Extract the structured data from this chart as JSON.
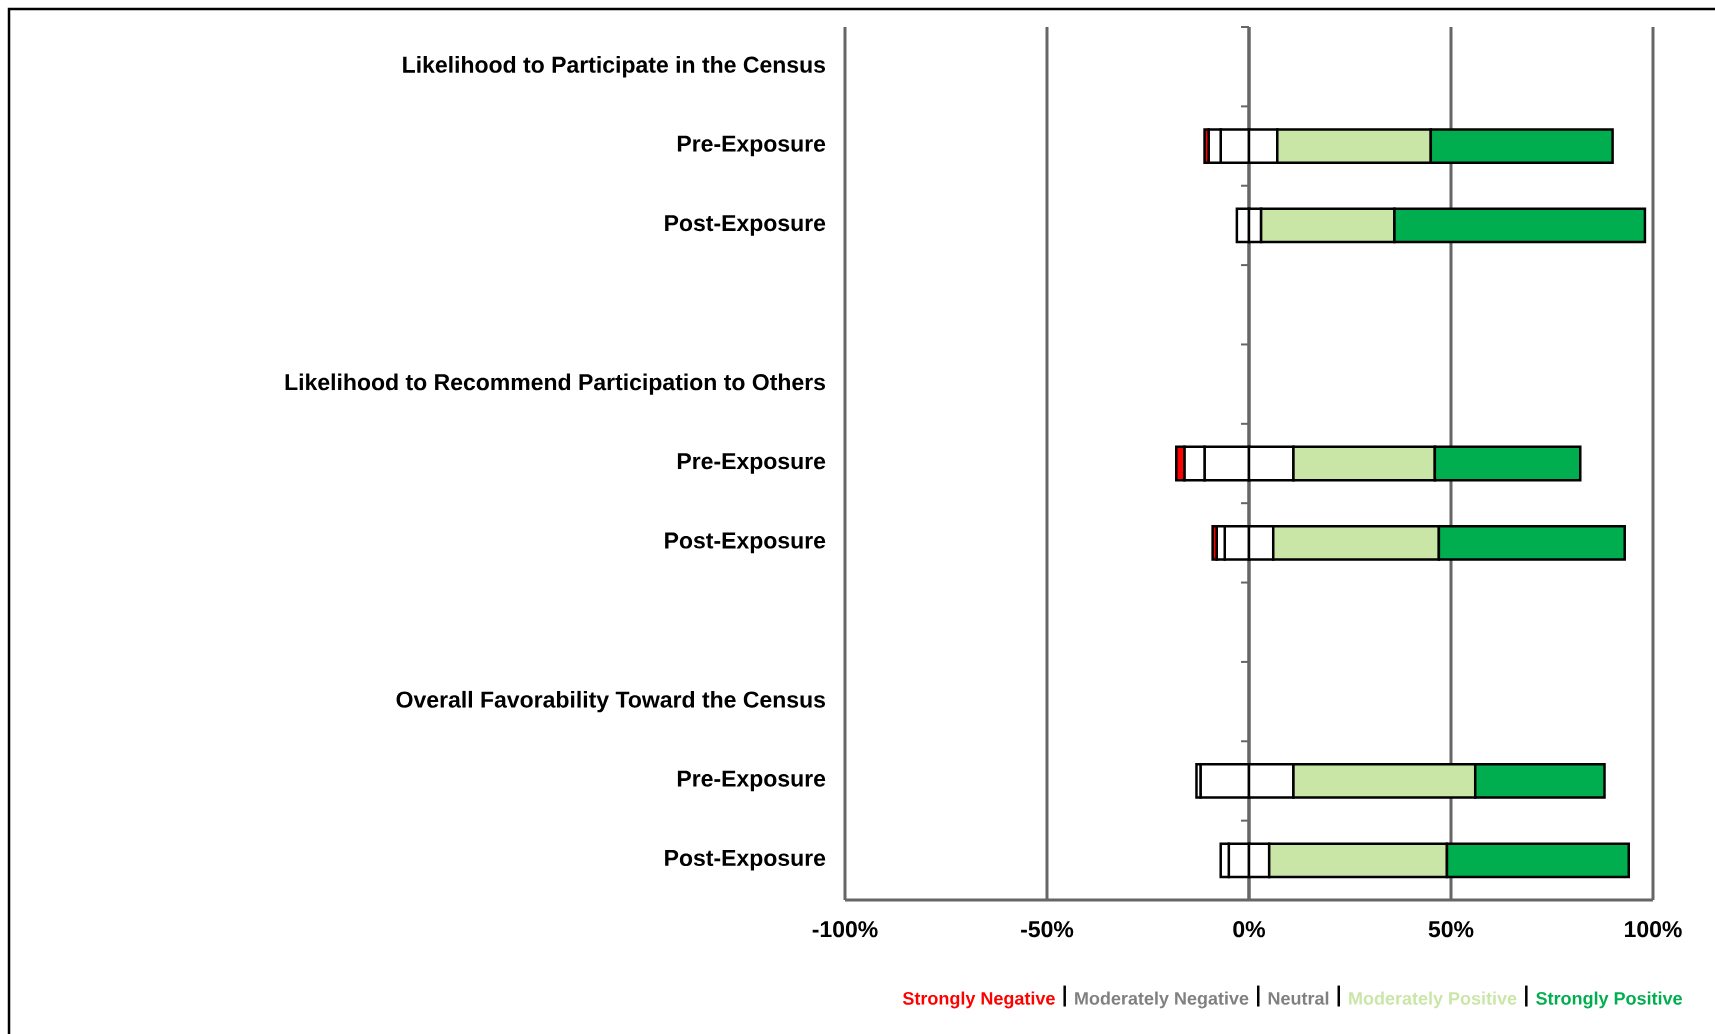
{
  "chart_data": {
    "type": "bar",
    "orientation": "horizontal",
    "stacked": true,
    "categories": [
      "Likelihood to Participate in the Census",
      "Pre-Exposure",
      "Post-Exposure",
      null,
      "Likelihood to Recommend Participation to Others",
      "Pre-Exposure",
      "Post-Exposure",
      null,
      "Overall Favorability Toward the Census",
      "Pre-Exposure",
      "Post-Exposure"
    ],
    "series": [
      {
        "name": "Neutral",
        "color": "#ffffff",
        "values": [
          null,
          -7,
          -3,
          null,
          null,
          -11,
          -6,
          null,
          null,
          -12,
          -5
        ]
      },
      {
        "color": "#ffffff",
        "values": [
          null,
          7,
          3,
          null,
          null,
          11,
          6,
          null,
          null,
          11,
          5
        ]
      },
      {
        "name": "Moderately Negative",
        "color": "#ffffff",
        "values": [
          null,
          -3,
          0,
          null,
          null,
          -5,
          -2,
          null,
          null,
          -1,
          -2
        ]
      },
      {
        "name": "Strongly Negative",
        "color": "#ff0000",
        "values": [
          null,
          -1,
          0,
          null,
          null,
          -2,
          -1,
          null,
          null,
          0,
          0
        ]
      },
      {
        "name": "Moderately Positive",
        "color": "#c9e6a7",
        "values": [
          null,
          38,
          33,
          null,
          null,
          35,
          41,
          null,
          null,
          45,
          44
        ]
      },
      {
        "name": "Strongly Positive",
        "color": "#00ae4f",
        "values": [
          null,
          45,
          62,
          null,
          null,
          36,
          46,
          null,
          null,
          32,
          45
        ]
      }
    ],
    "xlim": [
      -100,
      100
    ],
    "xticks": [
      {
        "value": -100,
        "label": "-100%"
      },
      {
        "value": -50,
        "label": "-50%"
      },
      {
        "value": 0,
        "label": "0%"
      },
      {
        "value": 50,
        "label": "50%"
      },
      {
        "value": 100,
        "label": "100%"
      }
    ],
    "grid": "x",
    "legend": "bottom right"
  }
}
